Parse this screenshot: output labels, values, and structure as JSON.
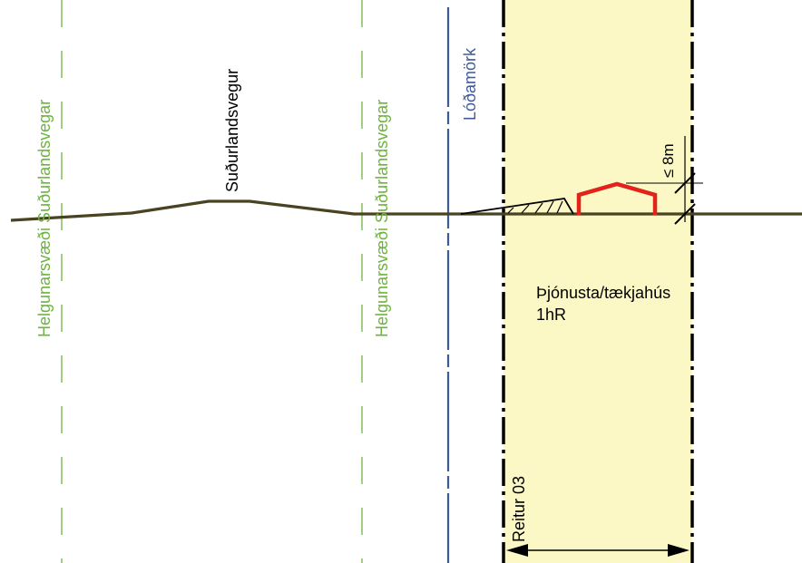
{
  "labels": {
    "helgunarsvaedi_left": "Helgunarsvæði Suðurlandsvegar",
    "sudurlandsvegur": "Suðurlandsvegur",
    "helgunarsvaedi_right": "Helgunarsvæði Suðurlandsvegar",
    "lodamork": "Lóðamörk",
    "max_height": "≤ 8m",
    "building_use": "Þjónusta/tækjahús",
    "building_code": "1hR",
    "reitur": "Reitur 03"
  },
  "colors": {
    "green_zone": "#6db33f",
    "plot_boundary": "#3e5a9a",
    "building_area_fill": "#fcf8c5",
    "terrain": "#4a4322",
    "building_outline": "#e2231a",
    "black": "#000000"
  },
  "symbols": {
    "dimension_arrow": "double-arrow",
    "embankment": "hatched-slope"
  }
}
